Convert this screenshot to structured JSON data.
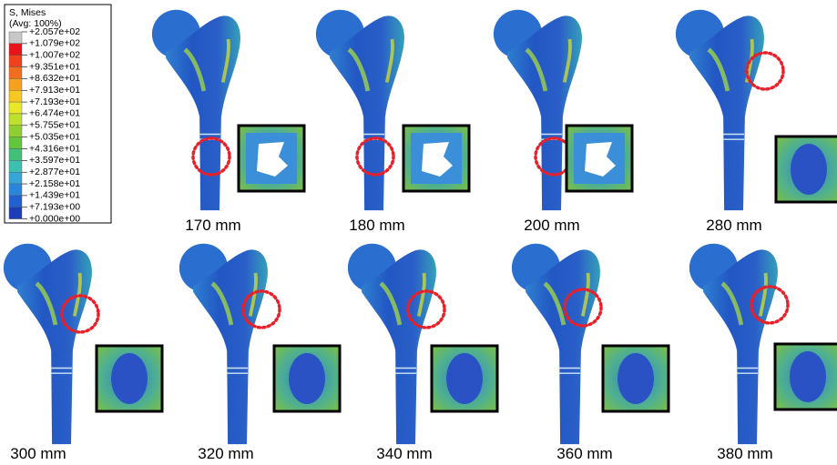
{
  "legend": {
    "title": [
      "S, Mises",
      "(Avg: 100%)"
    ],
    "labels": [
      "+2.057e+02",
      "+1.079e+02",
      "+1.007e+02",
      "+9.351e+01",
      "+8.632e+01",
      "+7.913e+01",
      "+7.193e+01",
      "+6.474e+01",
      "+5.755e+01",
      "+5.035e+01",
      "+4.316e+01",
      "+3.597e+01",
      "+2.877e+01",
      "+2.158e+01",
      "+1.439e+01",
      "+7.193e+00",
      "+0.000e+00"
    ]
  },
  "panels": [
    {
      "label": "170 mm"
    },
    {
      "label": "180 mm"
    },
    {
      "label": "200 mm"
    },
    {
      "label": "280 mm"
    },
    {
      "label": "300 mm"
    },
    {
      "label": "320 mm"
    },
    {
      "label": "340 mm"
    },
    {
      "label": "360 mm"
    },
    {
      "label": "380 mm"
    }
  ]
}
